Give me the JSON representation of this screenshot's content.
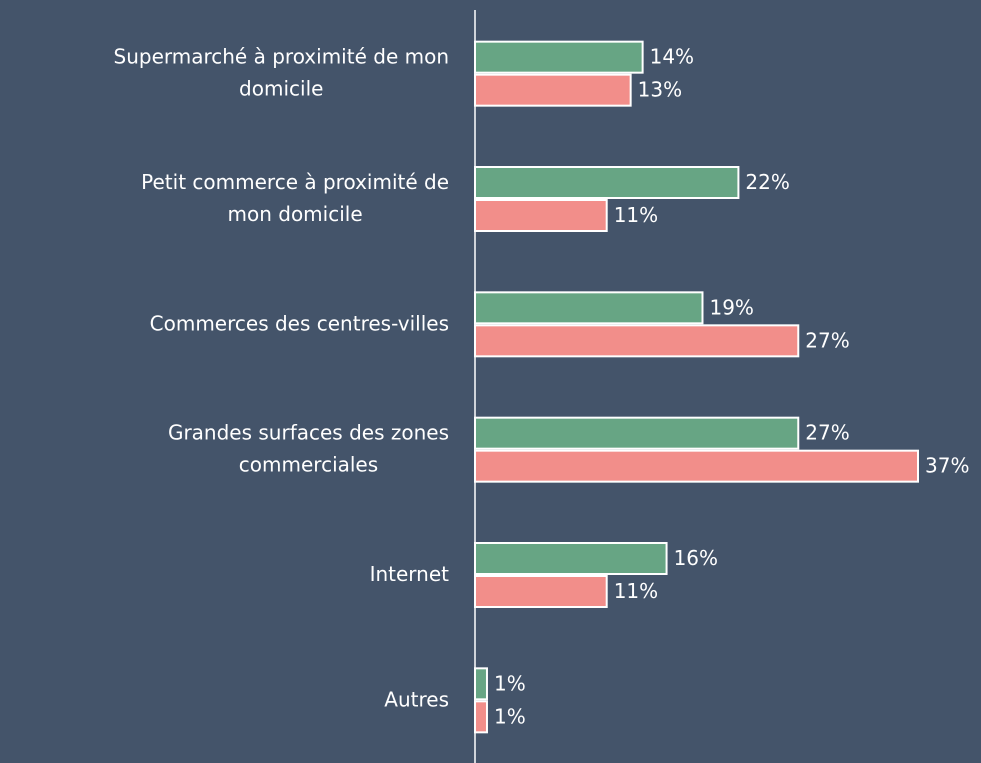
{
  "chart_data": {
    "type": "bar",
    "orientation": "horizontal",
    "categories": [
      "Supermarché à proximité de mon\ndomicile",
      "Petit commerce à proximité de\nmon domicile",
      "Commerces des centres-villes",
      "Grandes surfaces des zones\ncommerciales",
      "Internet",
      "Autres"
    ],
    "series": [
      {
        "color": "#67a584",
        "values": [
          14,
          22,
          19,
          27,
          16,
          1
        ],
        "value_labels": [
          "14%",
          "22%",
          "19%",
          "27%",
          "16%",
          "1%"
        ]
      },
      {
        "color": "#f28e8a",
        "values": [
          13,
          11,
          27,
          37,
          11,
          1
        ],
        "value_labels": [
          "13%",
          "11%",
          "27%",
          "37%",
          "11%",
          "1%"
        ]
      }
    ]
  }
}
